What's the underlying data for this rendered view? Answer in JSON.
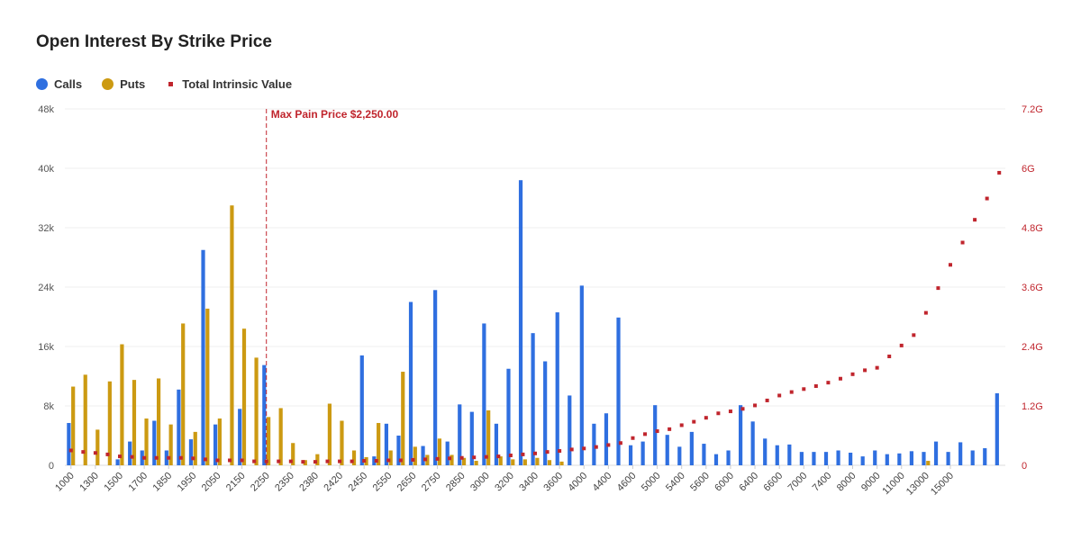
{
  "chart_data": {
    "type": "bar",
    "title": "Open Interest By Strike Price",
    "colors": {
      "calls": "#2f6fe0",
      "puts": "#cc9a12",
      "intrinsic": "#c0252d",
      "annotation": "#c0252d"
    },
    "legend": {
      "placement": "top-left",
      "entries": [
        "Calls",
        "Puts",
        "Total Intrinsic Value"
      ]
    },
    "left_axis": {
      "ylim": [
        0,
        48000
      ],
      "ticks": [
        "0",
        "8k",
        "16k",
        "24k",
        "32k",
        "40k",
        "48k"
      ]
    },
    "right_axis": {
      "ylim": [
        0,
        7.2
      ],
      "unit": "G",
      "ticks": [
        "0",
        "1.2G",
        "2.4G",
        "3.6G",
        "4.8G",
        "6G",
        "7.2G"
      ]
    },
    "x_tick_labels": [
      "1000",
      "1300",
      "1500",
      "1700",
      "1850",
      "1950",
      "2050",
      "2150",
      "2250",
      "2350",
      "2380",
      "2420",
      "2450",
      "2550",
      "2650",
      "2750",
      "2850",
      "3000",
      "3200",
      "3400",
      "3600",
      "4000",
      "4400",
      "4600",
      "5000",
      "5400",
      "5600",
      "6000",
      "6400",
      "6600",
      "7000",
      "7400",
      "8000",
      "9000",
      "11000",
      "13000",
      "15000"
    ],
    "annotation": {
      "label": "Max Pain Price $2,250.00",
      "category_index": 16
    },
    "series": [
      {
        "name": "Calls",
        "axis": "left",
        "values": [
          5700,
          0,
          0,
          0,
          800,
          3200,
          2000,
          6000,
          2000,
          10200,
          3500,
          29000,
          5500,
          0,
          7600,
          0,
          13500,
          0,
          0,
          0,
          0,
          0,
          0,
          0,
          14800,
          1200,
          5600,
          4000,
          22000,
          2600,
          23600,
          3200,
          8200,
          7200,
          19100,
          5600,
          13000,
          38400,
          17800,
          14000,
          20600,
          9400,
          24200,
          5600,
          7000,
          19900,
          2700,
          3200,
          8100,
          4100,
          2500,
          4500,
          2900,
          1500,
          2000,
          8100,
          5900,
          3600,
          2700,
          2800,
          1800,
          1800,
          1800,
          2000,
          1700,
          1200,
          2000,
          1500,
          1600,
          1900,
          1800,
          3200,
          1800,
          3100,
          2000,
          2300,
          9700
        ]
      },
      {
        "name": "Puts",
        "axis": "left",
        "values": [
          10600,
          12200,
          4800,
          11300,
          16300,
          11500,
          6300,
          11700,
          5500,
          19100,
          4500,
          21100,
          6300,
          35000,
          18400,
          14500,
          6500,
          7700,
          3000,
          700,
          1500,
          8300,
          6000,
          2000,
          1100,
          5700,
          2000,
          12600,
          2500,
          1400,
          3600,
          1400,
          1000,
          600,
          7400,
          1200,
          800,
          800,
          1000,
          700,
          500,
          0,
          0,
          0,
          0,
          0,
          0,
          0,
          0,
          0,
          0,
          0,
          0,
          0,
          0,
          0,
          0,
          0,
          0,
          0,
          0,
          0,
          0,
          0,
          0,
          0,
          0,
          0,
          0,
          0,
          600,
          0,
          0,
          0,
          0,
          0,
          0
        ]
      },
      {
        "name": "Total Intrinsic Value",
        "axis": "right",
        "values": [
          0.3,
          0.27,
          0.25,
          0.22,
          0.18,
          0.17,
          0.15,
          0.15,
          0.15,
          0.15,
          0.14,
          0.12,
          0.1,
          0.1,
          0.1,
          0.08,
          0.08,
          0.08,
          0.08,
          0.07,
          0.07,
          0.08,
          0.08,
          0.08,
          0.09,
          0.09,
          0.1,
          0.1,
          0.11,
          0.12,
          0.13,
          0.14,
          0.15,
          0.16,
          0.17,
          0.18,
          0.2,
          0.22,
          0.24,
          0.27,
          0.29,
          0.32,
          0.34,
          0.37,
          0.41,
          0.45,
          0.55,
          0.63,
          0.69,
          0.73,
          0.81,
          0.88,
          0.96,
          1.05,
          1.09,
          1.14,
          1.21,
          1.31,
          1.41,
          1.48,
          1.54,
          1.6,
          1.67,
          1.75,
          1.84,
          1.92,
          1.97,
          2.2,
          2.42,
          2.63,
          3.08,
          3.58,
          4.05,
          4.5,
          4.96,
          5.39,
          5.91
        ]
      }
    ]
  }
}
